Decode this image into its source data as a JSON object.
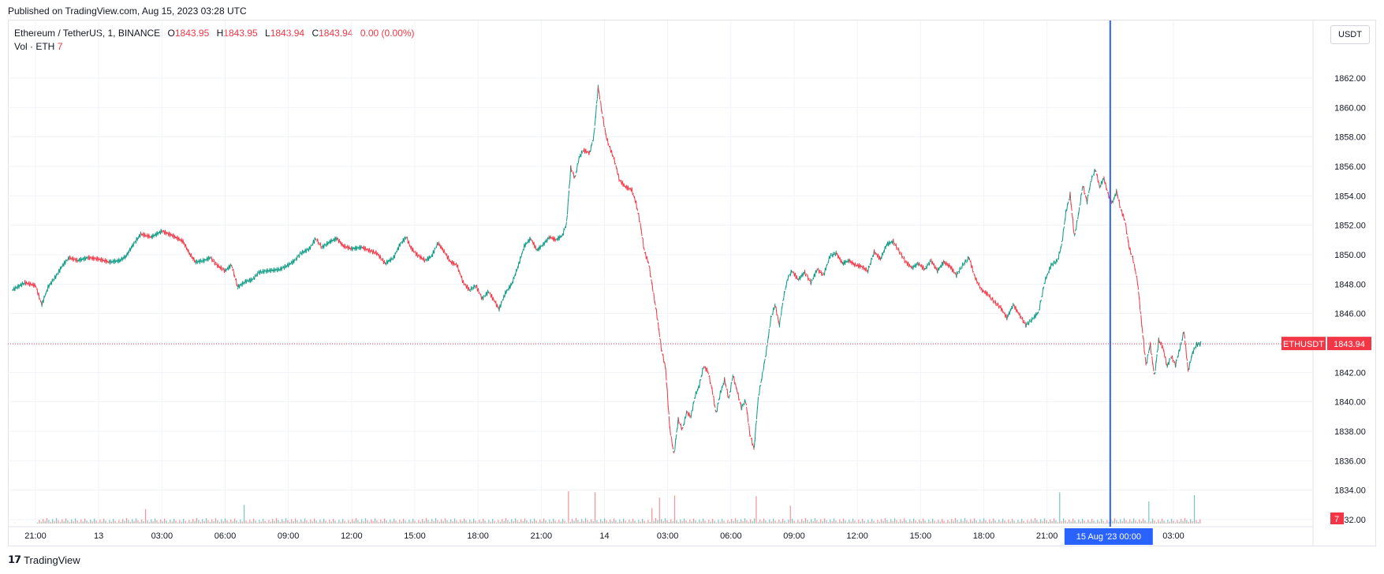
{
  "published": "Published on TradingView.com, Aug 15, 2023 03:28 UTC",
  "legend": {
    "symbol": "Ethereum / TetherUS, 1, BINANCE",
    "o_label": "O",
    "o": "1843.95",
    "h_label": "H",
    "h": "1843.95",
    "l_label": "L",
    "l": "1843.94",
    "c_label": "C",
    "c": "1843.94",
    "change": "0.00 (0.00%)",
    "vol_label": "Vol · ETH",
    "vol": "7"
  },
  "currency_button": "USDT",
  "footer_brand": "TradingView",
  "colors": {
    "up": "#089981",
    "down": "#f23645",
    "crosshair": "#2962ff",
    "grid": "#f0f3fa"
  },
  "chart_data": {
    "type": "candlestick",
    "title": "Ethereum / TetherUS, 1, BINANCE",
    "ylim": [
      1832,
      1863
    ],
    "y_ticks": [
      "1862.00",
      "1860.00",
      "1858.00",
      "1856.00",
      "1854.00",
      "1852.00",
      "1850.00",
      "1848.00",
      "1846.00",
      "1844.00",
      "1842.00",
      "1840.00",
      "1838.00",
      "1836.00",
      "1834.00",
      "1832.00"
    ],
    "y_tick_values": [
      1862,
      1860,
      1858,
      1856,
      1854,
      1852,
      1850,
      1848,
      1846,
      1844,
      1842,
      1840,
      1838,
      1836,
      1834,
      1832
    ],
    "x_ticks": [
      "21:00",
      "13",
      "03:00",
      "06:00",
      "09:00",
      "12:00",
      "15:00",
      "18:00",
      "21:00",
      "14",
      "03:00",
      "06:00",
      "09:00",
      "12:00",
      "15:00",
      "18:00",
      "21:00",
      "03:00"
    ],
    "x_tick_hours": [
      0,
      3,
      6,
      9,
      12,
      15,
      18,
      21,
      24,
      27,
      30,
      33,
      36,
      39,
      42,
      45,
      48,
      54
    ],
    "x_range_hours": [
      -1.1,
      55.3
    ],
    "crosshair": {
      "hour": 51,
      "label": "15 Aug '23   00:00"
    },
    "last_price": {
      "value": 1843.94,
      "symbol_label": "ETHUSDT",
      "price_label": "1843.94"
    },
    "volume_label": "7",
    "price_path": [
      [
        -1.1,
        1847.6
      ],
      [
        -0.5,
        1848.1
      ],
      [
        0,
        1847.9
      ],
      [
        0.3,
        1846.6
      ],
      [
        0.6,
        1847.8
      ],
      [
        1.0,
        1848.6
      ],
      [
        1.3,
        1849.3
      ],
      [
        1.6,
        1849.8
      ],
      [
        2.0,
        1849.6
      ],
      [
        2.5,
        1849.8
      ],
      [
        3.0,
        1849.7
      ],
      [
        3.5,
        1849.5
      ],
      [
        4.0,
        1849.6
      ],
      [
        4.3,
        1849.9
      ],
      [
        4.6,
        1850.6
      ],
      [
        5.0,
        1851.4
      ],
      [
        5.5,
        1851.2
      ],
      [
        6.0,
        1851.6
      ],
      [
        6.5,
        1851.3
      ],
      [
        7.0,
        1850.9
      ],
      [
        7.3,
        1850.1
      ],
      [
        7.6,
        1849.5
      ],
      [
        8.0,
        1849.6
      ],
      [
        8.3,
        1849.8
      ],
      [
        8.6,
        1849.3
      ],
      [
        9.0,
        1848.9
      ],
      [
        9.3,
        1849.3
      ],
      [
        9.6,
        1847.8
      ],
      [
        10.0,
        1848.2
      ],
      [
        10.3,
        1848.3
      ],
      [
        10.6,
        1848.8
      ],
      [
        11.0,
        1848.9
      ],
      [
        11.6,
        1849.0
      ],
      [
        12.0,
        1849.3
      ],
      [
        12.3,
        1849.6
      ],
      [
        12.6,
        1850.1
      ],
      [
        13.0,
        1850.4
      ],
      [
        13.3,
        1851.1
      ],
      [
        13.6,
        1850.5
      ],
      [
        14.0,
        1850.9
      ],
      [
        14.3,
        1851.1
      ],
      [
        14.6,
        1850.6
      ],
      [
        15.0,
        1850.4
      ],
      [
        15.5,
        1850.5
      ],
      [
        15.8,
        1850.3
      ],
      [
        16.2,
        1850.1
      ],
      [
        16.6,
        1849.4
      ],
      [
        17.0,
        1849.8
      ],
      [
        17.3,
        1850.7
      ],
      [
        17.6,
        1851.2
      ],
      [
        17.8,
        1850.5
      ],
      [
        18.1,
        1850.0
      ],
      [
        18.5,
        1849.6
      ],
      [
        18.8,
        1849.9
      ],
      [
        19.1,
        1850.8
      ],
      [
        19.4,
        1850.2
      ],
      [
        19.7,
        1849.5
      ],
      [
        20.0,
        1849.3
      ],
      [
        20.3,
        1848.1
      ],
      [
        20.6,
        1847.6
      ],
      [
        20.9,
        1847.9
      ],
      [
        21.2,
        1847.0
      ],
      [
        21.5,
        1847.5
      ],
      [
        21.8,
        1846.8
      ],
      [
        22.0,
        1846.3
      ],
      [
        22.3,
        1847.4
      ],
      [
        22.6,
        1848.0
      ],
      [
        22.9,
        1849.2
      ],
      [
        23.2,
        1850.6
      ],
      [
        23.5,
        1851.1
      ],
      [
        23.8,
        1850.3
      ],
      [
        24.1,
        1850.7
      ],
      [
        24.4,
        1851.2
      ],
      [
        24.7,
        1851.0
      ],
      [
        25.0,
        1851.3
      ],
      [
        25.2,
        1852.1
      ],
      [
        25.4,
        1855.9
      ],
      [
        25.6,
        1855.2
      ],
      [
        25.8,
        1856.6
      ],
      [
        26.0,
        1857.1
      ],
      [
        26.3,
        1856.9
      ],
      [
        26.5,
        1858.1
      ],
      [
        26.7,
        1861.4
      ],
      [
        26.9,
        1859.5
      ],
      [
        27.1,
        1857.9
      ],
      [
        27.3,
        1857.1
      ],
      [
        27.5,
        1856.3
      ],
      [
        27.7,
        1855.1
      ],
      [
        28.0,
        1854.6
      ],
      [
        28.3,
        1854.4
      ],
      [
        28.5,
        1853.5
      ],
      [
        28.7,
        1852.1
      ],
      [
        28.9,
        1850.2
      ],
      [
        29.1,
        1849.4
      ],
      [
        29.3,
        1847.6
      ],
      [
        29.5,
        1845.8
      ],
      [
        29.7,
        1843.6
      ],
      [
        29.9,
        1842.3
      ],
      [
        30.1,
        1838.2
      ],
      [
        30.3,
        1836.4
      ],
      [
        30.5,
        1838.8
      ],
      [
        30.7,
        1838.1
      ],
      [
        30.9,
        1839.3
      ],
      [
        31.1,
        1839.0
      ],
      [
        31.3,
        1840.4
      ],
      [
        31.5,
        1841.1
      ],
      [
        31.7,
        1842.4
      ],
      [
        31.9,
        1842.1
      ],
      [
        32.1,
        1840.9
      ],
      [
        32.3,
        1839.2
      ],
      [
        32.5,
        1840.6
      ],
      [
        32.7,
        1841.5
      ],
      [
        32.9,
        1840.2
      ],
      [
        33.1,
        1841.8
      ],
      [
        33.3,
        1840.7
      ],
      [
        33.5,
        1839.6
      ],
      [
        33.7,
        1840.1
      ],
      [
        33.9,
        1837.8
      ],
      [
        34.1,
        1836.8
      ],
      [
        34.3,
        1840.3
      ],
      [
        34.5,
        1841.9
      ],
      [
        34.7,
        1843.6
      ],
      [
        34.9,
        1845.7
      ],
      [
        35.1,
        1846.6
      ],
      [
        35.3,
        1845.2
      ],
      [
        35.5,
        1847.1
      ],
      [
        35.7,
        1848.4
      ],
      [
        35.9,
        1848.9
      ],
      [
        36.2,
        1848.3
      ],
      [
        36.5,
        1848.8
      ],
      [
        36.8,
        1848.1
      ],
      [
        37.1,
        1849.0
      ],
      [
        37.4,
        1848.6
      ],
      [
        37.7,
        1849.9
      ],
      [
        38.0,
        1850.1
      ],
      [
        38.3,
        1849.4
      ],
      [
        38.6,
        1849.6
      ],
      [
        38.9,
        1849.3
      ],
      [
        39.2,
        1849.2
      ],
      [
        39.5,
        1848.9
      ],
      [
        39.8,
        1850.2
      ],
      [
        40.1,
        1849.7
      ],
      [
        40.4,
        1850.7
      ],
      [
        40.7,
        1850.9
      ],
      [
        41.0,
        1850.2
      ],
      [
        41.3,
        1849.5
      ],
      [
        41.6,
        1849.1
      ],
      [
        41.9,
        1849.4
      ],
      [
        42.2,
        1849.0
      ],
      [
        42.5,
        1849.6
      ],
      [
        42.8,
        1848.9
      ],
      [
        43.1,
        1849.5
      ],
      [
        43.4,
        1849.2
      ],
      [
        43.7,
        1848.6
      ],
      [
        44.0,
        1849.3
      ],
      [
        44.3,
        1849.8
      ],
      [
        44.6,
        1848.4
      ],
      [
        44.9,
        1847.6
      ],
      [
        45.2,
        1847.3
      ],
      [
        45.5,
        1846.8
      ],
      [
        45.8,
        1846.4
      ],
      [
        46.1,
        1845.7
      ],
      [
        46.4,
        1846.6
      ],
      [
        46.7,
        1845.9
      ],
      [
        47.0,
        1845.2
      ],
      [
        47.3,
        1845.6
      ],
      [
        47.6,
        1846.1
      ],
      [
        47.9,
        1848.2
      ],
      [
        48.2,
        1849.3
      ],
      [
        48.5,
        1849.6
      ],
      [
        48.7,
        1850.7
      ],
      [
        48.9,
        1852.9
      ],
      [
        49.1,
        1854.1
      ],
      [
        49.3,
        1851.2
      ],
      [
        49.5,
        1852.8
      ],
      [
        49.7,
        1854.7
      ],
      [
        49.9,
        1853.6
      ],
      [
        50.1,
        1855.1
      ],
      [
        50.3,
        1855.8
      ],
      [
        50.5,
        1854.6
      ],
      [
        50.7,
        1855.2
      ],
      [
        50.9,
        1854.1
      ],
      [
        51.1,
        1853.5
      ],
      [
        51.3,
        1854.3
      ],
      [
        51.5,
        1853.1
      ],
      [
        51.7,
        1852.3
      ],
      [
        51.9,
        1850.5
      ],
      [
        52.1,
        1849.6
      ],
      [
        52.3,
        1848.1
      ],
      [
        52.5,
        1845.2
      ],
      [
        52.7,
        1842.5
      ],
      [
        52.9,
        1843.9
      ],
      [
        53.1,
        1841.7
      ],
      [
        53.3,
        1844.2
      ],
      [
        53.5,
        1843.7
      ],
      [
        53.7,
        1842.4
      ],
      [
        53.9,
        1843.1
      ],
      [
        54.1,
        1842.5
      ],
      [
        54.3,
        1843.6
      ],
      [
        54.5,
        1844.8
      ],
      [
        54.7,
        1842.1
      ],
      [
        54.9,
        1843.3
      ],
      [
        55.1,
        1843.9
      ],
      [
        55.3,
        1843.94
      ]
    ],
    "volume_spikes_hours": [
      5.2,
      9.9,
      25.3,
      26.5,
      29.2,
      29.6,
      30.3,
      34.2,
      35.8,
      48.6,
      52.8,
      55.0
    ]
  }
}
